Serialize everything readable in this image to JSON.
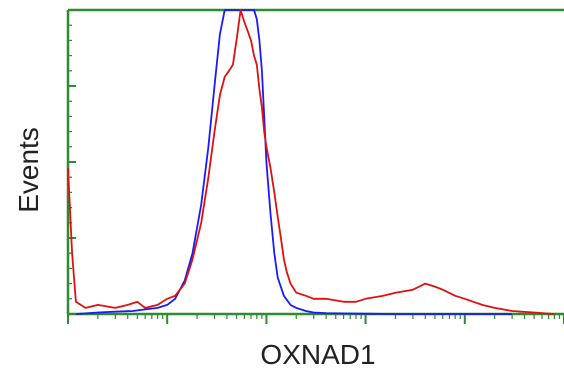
{
  "chart_data": {
    "type": "line",
    "title": "",
    "xlabel": "OXNAD1",
    "ylabel": "Events",
    "x_scale": "log",
    "xlim": [
      1,
      100000
    ],
    "ylim": [
      0,
      100
    ],
    "grid": false,
    "legend": "none",
    "colors": {
      "axis": "#2e8b2e",
      "series_blue": "#1a1aff",
      "series_red": "#e01010"
    },
    "series": [
      {
        "color": "#1a1aff",
        "x": [
          1.2,
          2,
          3,
          4.5,
          6,
          8,
          10,
          12,
          15,
          18,
          22,
          26,
          30,
          34,
          38,
          42,
          45,
          48,
          52,
          56,
          60,
          65,
          70,
          75,
          80,
          85,
          90,
          95,
          100,
          110,
          120,
          130,
          150,
          175,
          200,
          250,
          300,
          400,
          600,
          1000,
          2000,
          5000,
          10000,
          30000
        ],
        "y": [
          0,
          0.5,
          0.8,
          1,
          1.5,
          2,
          3,
          5,
          11,
          20,
          36,
          55,
          75,
          92,
          100,
          100,
          100,
          100,
          100,
          100,
          100,
          100,
          100,
          100,
          97,
          90,
          80,
          65,
          50,
          33,
          20,
          12,
          6,
          3,
          2,
          1,
          0.5,
          0.3,
          0.2,
          0.1,
          0,
          0,
          0,
          0
        ]
      },
      {
        "color": "#e01010",
        "x": [
          1,
          1.1,
          1.2,
          1.5,
          2,
          3,
          4,
          5,
          6,
          8,
          10,
          12,
          15,
          18,
          22,
          26,
          30,
          34,
          38,
          42,
          46,
          50,
          55,
          60,
          65,
          70,
          75,
          80,
          85,
          90,
          95,
          100,
          110,
          120,
          130,
          140,
          150,
          160,
          175,
          200,
          250,
          300,
          400,
          600,
          800,
          1000,
          1500,
          2000,
          3000,
          4000,
          5000,
          6000,
          8000,
          10000,
          15000,
          20000,
          30000,
          50000,
          80000
        ],
        "y": [
          48,
          20,
          4,
          2,
          3,
          2,
          3,
          4,
          2,
          3,
          5,
          6,
          10,
          18,
          30,
          45,
          60,
          72,
          78,
          80,
          82,
          90,
          100,
          96,
          93,
          90,
          85,
          82,
          74,
          68,
          60,
          55,
          48,
          40,
          32,
          25,
          18,
          14,
          10,
          7,
          6,
          5,
          5,
          4,
          4,
          5,
          6,
          7,
          8,
          10,
          9,
          8,
          6,
          5,
          3,
          2,
          1,
          0.5,
          0
        ]
      }
    ]
  }
}
